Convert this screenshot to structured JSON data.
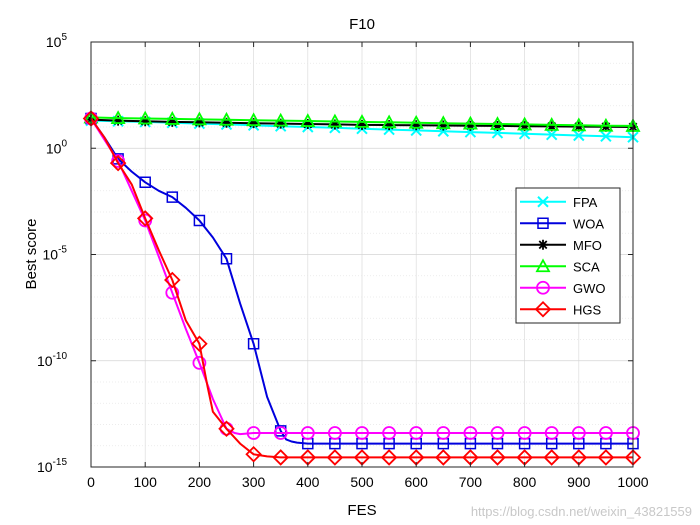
{
  "chart_data": {
    "type": "line",
    "title": "F10",
    "xlabel": "FES",
    "ylabel": "Best score",
    "xlim": [
      0,
      1000
    ],
    "ylim_log10": [
      -15,
      5
    ],
    "yscale": "log",
    "x_ticks": [
      "0",
      "100",
      "200",
      "300",
      "400",
      "500",
      "600",
      "700",
      "800",
      "900",
      "1000"
    ],
    "y_ticks": [
      {
        "base": "10",
        "exp": "-15",
        "p": -15
      },
      {
        "base": "10",
        "exp": "-10",
        "p": -10
      },
      {
        "base": "10",
        "exp": "-5",
        "p": -5
      },
      {
        "base": "10",
        "exp": "0",
        "p": 0
      },
      {
        "base": "10",
        "exp": "5",
        "p": 5
      }
    ],
    "grid": true,
    "legend_position": "right",
    "series": [
      {
        "name": "FPA",
        "color": "#00ffff",
        "marker": "x",
        "x": [
          0,
          50,
          100,
          150,
          200,
          250,
          300,
          350,
          400,
          450,
          500,
          550,
          600,
          650,
          700,
          750,
          800,
          850,
          900,
          950,
          1000
        ],
        "log10y": [
          1.3,
          1.27,
          1.24,
          1.2,
          1.16,
          1.12,
          1.08,
          1.04,
          1.0,
          0.96,
          0.92,
          0.88,
          0.84,
          0.8,
          0.76,
          0.72,
          0.68,
          0.64,
          0.6,
          0.56,
          0.52
        ]
      },
      {
        "name": "WOA",
        "color": "#0000dd",
        "marker": "square",
        "x": [
          0,
          25,
          50,
          75,
          100,
          125,
          150,
          175,
          200,
          225,
          250,
          275,
          300,
          325,
          350,
          360,
          370,
          380,
          400,
          450,
          500,
          600,
          700,
          800,
          900,
          1000
        ],
        "log10y": [
          1.4,
          0.5,
          -0.5,
          -1.1,
          -1.6,
          -2.0,
          -2.3,
          -2.8,
          -3.4,
          -4.2,
          -5.2,
          -7.3,
          -9.2,
          -11.7,
          -13.3,
          -13.7,
          -13.8,
          -13.85,
          -13.9,
          -13.9,
          -13.9,
          -13.9,
          -13.9,
          -13.9,
          -13.9,
          -13.9
        ]
      },
      {
        "name": "MFO",
        "color": "#000000",
        "marker": "star",
        "x": [
          0,
          50,
          100,
          150,
          200,
          250,
          300,
          350,
          400,
          450,
          500,
          550,
          600,
          650,
          700,
          750,
          800,
          850,
          900,
          950,
          1000
        ],
        "log10y": [
          1.35,
          1.3,
          1.27,
          1.24,
          1.22,
          1.2,
          1.18,
          1.16,
          1.14,
          1.12,
          1.1,
          1.09,
          1.08,
          1.07,
          1.06,
          1.05,
          1.04,
          1.03,
          1.02,
          1.01,
          1.0
        ]
      },
      {
        "name": "SCA",
        "color": "#00ff00",
        "marker": "triangle",
        "x": [
          0,
          50,
          100,
          150,
          200,
          250,
          300,
          350,
          400,
          450,
          500,
          550,
          600,
          650,
          700,
          750,
          800,
          850,
          900,
          950,
          1000
        ],
        "log10y": [
          1.45,
          1.42,
          1.4,
          1.38,
          1.36,
          1.34,
          1.32,
          1.3,
          1.28,
          1.26,
          1.24,
          1.22,
          1.2,
          1.18,
          1.16,
          1.14,
          1.12,
          1.1,
          1.08,
          1.06,
          1.05
        ]
      },
      {
        "name": "GWO",
        "color": "#ff00ff",
        "marker": "circle",
        "x": [
          0,
          25,
          50,
          75,
          100,
          125,
          150,
          175,
          200,
          225,
          250,
          265,
          275,
          300,
          350,
          400,
          450,
          500,
          600,
          700,
          800,
          900,
          1000
        ],
        "log10y": [
          1.4,
          0.4,
          -0.6,
          -2.0,
          -3.4,
          -5.1,
          -6.8,
          -8.5,
          -10.1,
          -11.8,
          -13.2,
          -13.4,
          -13.45,
          -13.4,
          -13.4,
          -13.4,
          -13.4,
          -13.4,
          -13.4,
          -13.4,
          -13.4,
          -13.4,
          -13.4
        ]
      },
      {
        "name": "HGS",
        "color": "#ff0000",
        "marker": "diamond",
        "x": [
          0,
          25,
          50,
          75,
          100,
          125,
          150,
          175,
          200,
          215,
          225,
          250,
          275,
          300,
          325,
          350,
          400,
          450,
          500,
          600,
          700,
          800,
          900,
          1000
        ],
        "log10y": [
          1.4,
          0.5,
          -0.7,
          -1.7,
          -3.3,
          -4.8,
          -6.2,
          -8.1,
          -9.2,
          -11.2,
          -12.4,
          -13.2,
          -13.9,
          -14.4,
          -14.5,
          -14.55,
          -14.55,
          -14.55,
          -14.55,
          -14.55,
          -14.55,
          -14.55,
          -14.55,
          -14.55
        ]
      }
    ]
  },
  "watermark": "https://blog.csdn.net/weixin_43821559"
}
